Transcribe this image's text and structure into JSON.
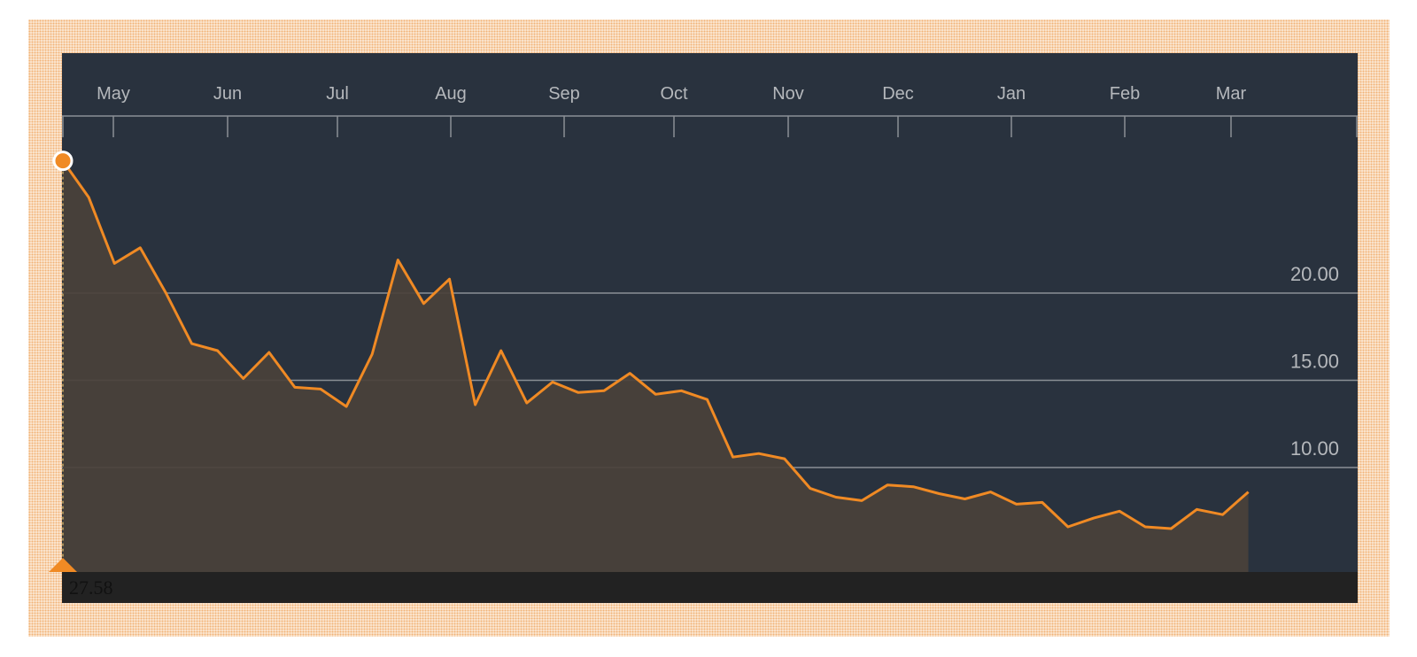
{
  "chart_data": {
    "type": "area",
    "xlabel": "",
    "ylabel": "",
    "x_tick_labels": [
      "May",
      "Jun",
      "Jul",
      "Aug",
      "Sep",
      "Oct",
      "Nov",
      "Dec",
      "Jan",
      "Feb",
      "Mar"
    ],
    "y_tick_labels": [
      "10.00",
      "15.00",
      "20.00"
    ],
    "y_ticks": [
      10,
      15,
      20
    ],
    "ylim": [
      3.5,
      27.58
    ],
    "grid": true,
    "start_value_label": "27.58",
    "series": [
      {
        "values": [
          27.58,
          25.5,
          21.7,
          22.6,
          20.0,
          17.1,
          16.7,
          15.1,
          16.6,
          14.6,
          14.5,
          13.5,
          16.5,
          21.9,
          19.4,
          20.8,
          13.6,
          16.7,
          13.7,
          14.9,
          14.3,
          14.4,
          15.4,
          14.2,
          14.4,
          13.9,
          10.6,
          10.8,
          10.5,
          8.8,
          8.3,
          8.1,
          9.0,
          8.9,
          8.5,
          8.2,
          8.6,
          7.9,
          8.0,
          6.6,
          7.1,
          7.5,
          6.6,
          6.5,
          7.6,
          7.3,
          8.6
        ],
        "color": "#f08a24",
        "fill": "#4a413a"
      }
    ]
  },
  "colors": {
    "panel_background": "#29323e",
    "line": "#f08a24",
    "area_fill": "#4a413a",
    "gridline": "#8a8f95",
    "tick_label": "#b5b8bc",
    "frame_dots": "#f2b277"
  }
}
